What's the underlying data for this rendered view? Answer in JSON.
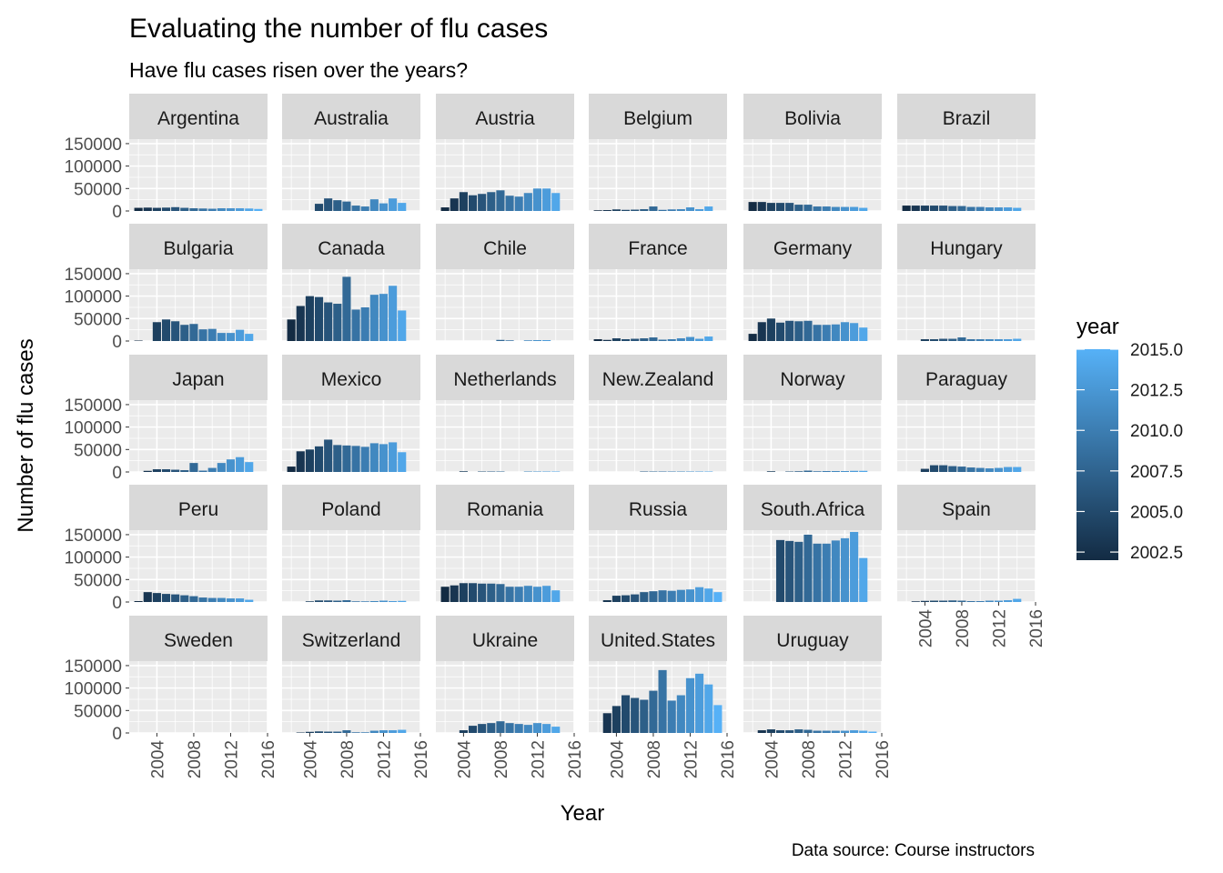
{
  "chart_data": {
    "type": "bar",
    "title": "Evaluating the number of flu cases",
    "subtitle": "Have flu cases risen over the years?",
    "xlabel": "Year",
    "ylabel": "Number of flu cases",
    "caption": "Data source: Course instructors",
    "xlim": [
      2001,
      2016
    ],
    "ylim": [
      0,
      160000
    ],
    "x_ticks": [
      2004,
      2008,
      2012,
      2016
    ],
    "x_tick_labels": [
      "2004",
      "2008",
      "2012",
      "2016"
    ],
    "y_ticks": [
      0,
      50000,
      100000,
      150000
    ],
    "y_tick_labels": [
      "0",
      "50000",
      "100000",
      "150000"
    ],
    "grid": true,
    "legend": {
      "title": "year",
      "placement": "right",
      "type": "colorbar",
      "range": [
        2002,
        2015
      ],
      "labels": [
        {
          "value": 2015.0,
          "text": "2015.0"
        },
        {
          "value": 2012.5,
          "text": "2012.5"
        },
        {
          "value": 2010.0,
          "text": "2010.0"
        },
        {
          "value": 2007.5,
          "text": "2007.5"
        },
        {
          "value": 2005.0,
          "text": "2005.0"
        },
        {
          "value": 2002.5,
          "text": "2002.5"
        }
      ],
      "color_low": "#132B43",
      "color_high": "#56B1F7"
    },
    "colors": {
      "panel_bg": "#EBEBEB",
      "grid": "#FFFFFF",
      "strip_bg": "#D9D9D9",
      "strip_text": "#1A1A1A",
      "axis_text": "#4D4D4D"
    },
    "years": [
      2002,
      2003,
      2004,
      2005,
      2006,
      2007,
      2008,
      2009,
      2010,
      2011,
      2012,
      2013,
      2014,
      2015
    ],
    "facets": [
      {
        "name": "Argentina",
        "values": [
          7000,
          7500,
          7000,
          7500,
          8500,
          7000,
          6000,
          5500,
          5000,
          6000,
          6000,
          6000,
          5500,
          4500
        ]
      },
      {
        "name": "Australia",
        "values": [
          0,
          0,
          0,
          16000,
          28000,
          24000,
          21000,
          12000,
          10000,
          26000,
          17000,
          28000,
          18000,
          0
        ]
      },
      {
        "name": "Austria",
        "values": [
          8000,
          28000,
          42000,
          35000,
          38000,
          42000,
          46000,
          34000,
          32000,
          40000,
          50000,
          50000,
          40000,
          0
        ]
      },
      {
        "name": "Belgium",
        "values": [
          1500,
          2000,
          3500,
          2500,
          3000,
          4000,
          10000,
          2500,
          3500,
          4000,
          8000,
          4000,
          10000,
          0
        ]
      },
      {
        "name": "Bolivia",
        "values": [
          20000,
          20000,
          18000,
          18000,
          18000,
          14000,
          14000,
          10000,
          10000,
          9000,
          9000,
          9000,
          7000,
          0
        ]
      },
      {
        "name": "Brazil",
        "values": [
          12000,
          12000,
          12000,
          12000,
          12000,
          11000,
          11000,
          9000,
          9000,
          8000,
          8000,
          8000,
          7000,
          0
        ]
      },
      {
        "name": "Bulgaria",
        "values": [
          1000,
          0,
          42000,
          48000,
          44000,
          36000,
          38000,
          26000,
          27000,
          18000,
          18000,
          25000,
          16000,
          0
        ]
      },
      {
        "name": "Canada",
        "values": [
          48000,
          78000,
          100000,
          98000,
          86000,
          83000,
          143000,
          70000,
          75000,
          103000,
          105000,
          123000,
          68000,
          0
        ]
      },
      {
        "name": "Chile",
        "values": [
          0,
          0,
          0,
          0,
          0,
          0,
          2500,
          1500,
          0,
          1500,
          2000,
          2000,
          0,
          0
        ]
      },
      {
        "name": "France",
        "values": [
          4000,
          2500,
          6000,
          4000,
          5000,
          6000,
          8000,
          3000,
          4000,
          6000,
          9000,
          5000,
          10000,
          0
        ]
      },
      {
        "name": "Germany",
        "values": [
          16000,
          42000,
          50000,
          41000,
          45000,
          44000,
          45000,
          36000,
          36000,
          37000,
          42000,
          40000,
          30000,
          0
        ]
      },
      {
        "name": "Hungary",
        "values": [
          0,
          0,
          4000,
          4000,
          5000,
          5000,
          8000,
          4000,
          4000,
          4000,
          4000,
          4000,
          5000,
          0
        ]
      },
      {
        "name": "Japan",
        "values": [
          0,
          2500,
          6000,
          6000,
          5000,
          4000,
          20000,
          3000,
          9000,
          20000,
          28000,
          33000,
          22000,
          0
        ]
      },
      {
        "name": "Mexico",
        "values": [
          12000,
          46000,
          50000,
          57000,
          72000,
          60000,
          59000,
          58000,
          56000,
          64000,
          62000,
          66000,
          44000,
          0
        ]
      },
      {
        "name": "Netherlands",
        "values": [
          0,
          0,
          1500,
          0,
          1000,
          1000,
          1000,
          0,
          0,
          1000,
          1000,
          1000,
          1000,
          0
        ]
      },
      {
        "name": "New.Zealand",
        "values": [
          0,
          0,
          0,
          0,
          0,
          1000,
          1000,
          1000,
          1000,
          1000,
          1000,
          1000,
          1000,
          0
        ]
      },
      {
        "name": "Norway",
        "values": [
          0,
          0,
          1500,
          0,
          1000,
          1500,
          3000,
          1500,
          2000,
          2000,
          2000,
          2500,
          2500,
          0
        ]
      },
      {
        "name": "Paraguay",
        "values": [
          0,
          0,
          7000,
          15000,
          15000,
          13000,
          12000,
          10000,
          9000,
          8000,
          9000,
          11000,
          11000,
          0
        ]
      },
      {
        "name": "Peru",
        "values": [
          2000,
          22000,
          20000,
          18000,
          17000,
          15000,
          13000,
          10000,
          9000,
          9000,
          8000,
          8000,
          5000,
          0
        ]
      },
      {
        "name": "Poland",
        "values": [
          0,
          0,
          1500,
          3500,
          3500,
          3000,
          4000,
          1500,
          1500,
          2000,
          3000,
          2000,
          2500,
          0
        ]
      },
      {
        "name": "Romania",
        "values": [
          34000,
          37000,
          42000,
          42000,
          41000,
          41000,
          40000,
          34000,
          34000,
          36000,
          34000,
          36000,
          26000,
          0
        ]
      },
      {
        "name": "Russia",
        "values": [
          0,
          4000,
          14000,
          15000,
          17000,
          22000,
          24000,
          26000,
          25000,
          27000,
          28000,
          33000,
          30000,
          22000
        ]
      },
      {
        "name": "South.Africa",
        "values": [
          0,
          0,
          0,
          138000,
          136000,
          134000,
          150000,
          130000,
          130000,
          137000,
          142000,
          156000,
          98000,
          0
        ]
      },
      {
        "name": "Spain",
        "values": [
          0,
          1500,
          2500,
          3000,
          3000,
          3500,
          3000,
          2000,
          2000,
          3000,
          3000,
          4000,
          7000,
          0
        ]
      },
      {
        "name": "Sweden",
        "values": [
          0,
          0,
          0,
          0,
          0,
          0,
          0,
          0,
          0,
          0,
          0,
          0,
          0,
          0
        ]
      },
      {
        "name": "Switzerland",
        "values": [
          0,
          1000,
          2500,
          3500,
          3000,
          3000,
          6000,
          1500,
          1500,
          5000,
          6000,
          6000,
          7000,
          0
        ]
      },
      {
        "name": "Ukraine",
        "values": [
          0,
          0,
          6000,
          16000,
          20000,
          22000,
          26000,
          22000,
          20000,
          18000,
          22000,
          20000,
          14000,
          0
        ]
      },
      {
        "name": "United.States",
        "values": [
          0,
          44000,
          60000,
          84000,
          78000,
          74000,
          94000,
          140000,
          72000,
          84000,
          122000,
          132000,
          108000,
          62000
        ]
      },
      {
        "name": "Uruguay",
        "values": [
          0,
          6000,
          8000,
          6000,
          6000,
          8000,
          7000,
          5000,
          5000,
          5000,
          5000,
          6000,
          5000,
          3000
        ]
      }
    ]
  }
}
